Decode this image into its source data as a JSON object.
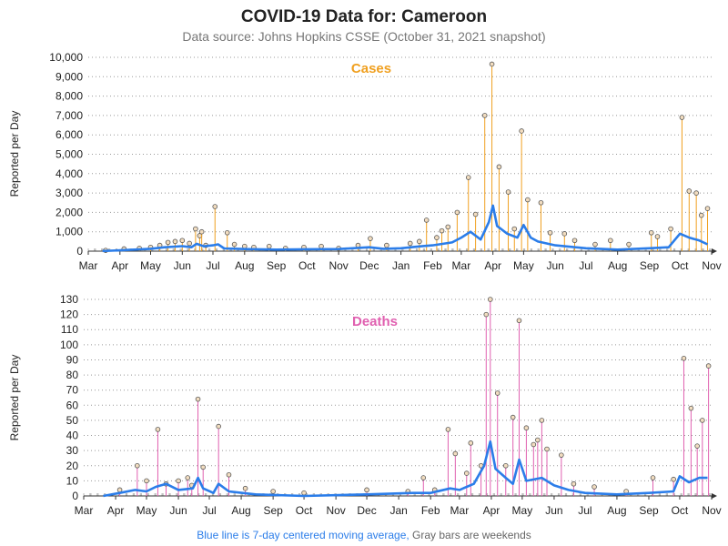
{
  "title": "COVID-19 Data for: Cameroon",
  "subtitle": "Data source: Johns Hopkins CSSE (October 31, 2021 snapshot)",
  "footnote": {
    "part1": "Blue line is 7-day centered moving average,",
    "part2": " Gray bars are weekends"
  },
  "colors": {
    "cases": "#f0a020",
    "deaths": "#e060b0",
    "moving_average": "#2b7de9",
    "weekend": "#bbbbbb",
    "marker_fill": "#f2ddc0"
  },
  "chart_data": [
    {
      "type": "line",
      "panel": "cases",
      "series_label": "Cases",
      "ylabel": "Reported per Day",
      "ylim": [
        0,
        10000
      ],
      "yticks": [
        0,
        1000,
        2000,
        3000,
        4000,
        5000,
        6000,
        7000,
        8000,
        9000,
        10000
      ],
      "ytick_labels": [
        "0",
        "1,000",
        "2,000",
        "3,000",
        "4,000",
        "5,000",
        "6,000",
        "7,000",
        "8,000",
        "9,000",
        "10,000"
      ],
      "x_tick_labels": [
        "Mar",
        "Apr",
        "May",
        "Jun",
        "Jul",
        "Aug",
        "Sep",
        "Oct",
        "Nov",
        "Dec",
        "Jan",
        "Feb",
        "Mar",
        "Apr",
        "May",
        "Jun",
        "Jul",
        "Aug",
        "Sep",
        "Oct",
        "Nov"
      ],
      "x_range": [
        "2020-03-01",
        "2021-11-01"
      ],
      "grid": "horizontal-dotted",
      "points": [
        [
          "2020-03-18",
          40
        ],
        [
          "2020-04-05",
          120
        ],
        [
          "2020-04-20",
          150
        ],
        [
          "2020-05-01",
          200
        ],
        [
          "2020-05-10",
          300
        ],
        [
          "2020-05-18",
          450
        ],
        [
          "2020-05-25",
          500
        ],
        [
          "2020-06-01",
          550
        ],
        [
          "2020-06-08",
          400
        ],
        [
          "2020-06-14",
          1150
        ],
        [
          "2020-06-18",
          800
        ],
        [
          "2020-06-20",
          1000
        ],
        [
          "2020-06-24",
          300
        ],
        [
          "2020-07-03",
          2300
        ],
        [
          "2020-07-15",
          950
        ],
        [
          "2020-07-22",
          350
        ],
        [
          "2020-08-01",
          250
        ],
        [
          "2020-08-10",
          200
        ],
        [
          "2020-08-25",
          250
        ],
        [
          "2020-09-10",
          150
        ],
        [
          "2020-09-28",
          200
        ],
        [
          "2020-10-15",
          250
        ],
        [
          "2020-11-01",
          150
        ],
        [
          "2020-11-20",
          300
        ],
        [
          "2020-12-02",
          650
        ],
        [
          "2020-12-18",
          300
        ],
        [
          "2021-01-10",
          400
        ],
        [
          "2021-01-19",
          500
        ],
        [
          "2021-01-26",
          1600
        ],
        [
          "2021-02-05",
          700
        ],
        [
          "2021-02-10",
          1050
        ],
        [
          "2021-02-16",
          1250
        ],
        [
          "2021-02-25",
          2000
        ],
        [
          "2021-03-08",
          3800
        ],
        [
          "2021-03-15",
          1900
        ],
        [
          "2021-03-24",
          7000
        ],
        [
          "2021-03-31",
          9650
        ],
        [
          "2021-04-07",
          4350
        ],
        [
          "2021-04-16",
          3050
        ],
        [
          "2021-04-22",
          1150
        ],
        [
          "2021-04-29",
          6200
        ],
        [
          "2021-05-05",
          2650
        ],
        [
          "2021-05-18",
          2500
        ],
        [
          "2021-05-27",
          950
        ],
        [
          "2021-06-10",
          900
        ],
        [
          "2021-06-20",
          550
        ],
        [
          "2021-07-10",
          350
        ],
        [
          "2021-07-25",
          550
        ],
        [
          "2021-08-12",
          350
        ],
        [
          "2021-09-03",
          950
        ],
        [
          "2021-09-09",
          750
        ],
        [
          "2021-09-22",
          1150
        ],
        [
          "2021-10-03",
          6900
        ],
        [
          "2021-10-10",
          3100
        ],
        [
          "2021-10-17",
          3000
        ],
        [
          "2021-10-22",
          1850
        ],
        [
          "2021-10-28",
          2200
        ]
      ],
      "moving_average": [
        [
          "2020-03-15",
          10
        ],
        [
          "2020-04-01",
          40
        ],
        [
          "2020-04-15",
          80
        ],
        [
          "2020-05-01",
          120
        ],
        [
          "2020-05-15",
          200
        ],
        [
          "2020-06-01",
          260
        ],
        [
          "2020-06-10",
          200
        ],
        [
          "2020-06-15",
          380
        ],
        [
          "2020-06-22",
          250
        ],
        [
          "2020-07-01",
          300
        ],
        [
          "2020-07-06",
          350
        ],
        [
          "2020-07-12",
          140
        ],
        [
          "2020-08-01",
          110
        ],
        [
          "2020-09-01",
          80
        ],
        [
          "2020-10-01",
          100
        ],
        [
          "2020-11-01",
          110
        ],
        [
          "2020-12-01",
          200
        ],
        [
          "2020-12-15",
          120
        ],
        [
          "2021-01-01",
          150
        ],
        [
          "2021-01-20",
          250
        ],
        [
          "2021-02-01",
          300
        ],
        [
          "2021-02-20",
          450
        ],
        [
          "2021-03-01",
          700
        ],
        [
          "2021-03-10",
          1000
        ],
        [
          "2021-03-20",
          600
        ],
        [
          "2021-03-28",
          1500
        ],
        [
          "2021-04-01",
          2350
        ],
        [
          "2021-04-05",
          1300
        ],
        [
          "2021-04-15",
          900
        ],
        [
          "2021-04-25",
          700
        ],
        [
          "2021-05-01",
          1350
        ],
        [
          "2021-05-08",
          700
        ],
        [
          "2021-05-15",
          500
        ],
        [
          "2021-06-01",
          300
        ],
        [
          "2021-07-01",
          150
        ],
        [
          "2021-08-01",
          80
        ],
        [
          "2021-09-01",
          150
        ],
        [
          "2021-09-20",
          200
        ],
        [
          "2021-10-01",
          900
        ],
        [
          "2021-10-10",
          700
        ],
        [
          "2021-10-20",
          550
        ],
        [
          "2021-10-28",
          350
        ]
      ]
    },
    {
      "type": "line",
      "panel": "deaths",
      "series_label": "Deaths",
      "ylabel": "Reported per Day",
      "ylim": [
        0,
        130
      ],
      "yticks": [
        0,
        10,
        20,
        30,
        40,
        50,
        60,
        70,
        80,
        90,
        100,
        110,
        120,
        130
      ],
      "ytick_labels": [
        "0",
        "10",
        "20",
        "30",
        "40",
        "50",
        "60",
        "70",
        "80",
        "90",
        "100",
        "110",
        "120",
        "130"
      ],
      "x_tick_labels": [
        "Mar",
        "Apr",
        "May",
        "Jun",
        "Jul",
        "Aug",
        "Sep",
        "Oct",
        "Nov",
        "Dec",
        "Jan",
        "Feb",
        "Mar",
        "Apr",
        "May",
        "Jun",
        "Jul",
        "Aug",
        "Sep",
        "Oct",
        "Nov"
      ],
      "x_range": [
        "2020-03-01",
        "2021-11-01"
      ],
      "grid": "horizontal-dotted",
      "points": [
        [
          "2020-04-05",
          4
        ],
        [
          "2020-04-22",
          20
        ],
        [
          "2020-05-01",
          10
        ],
        [
          "2020-05-12",
          44
        ],
        [
          "2020-05-20",
          8
        ],
        [
          "2020-06-01",
          10
        ],
        [
          "2020-06-10",
          12
        ],
        [
          "2020-06-14",
          7
        ],
        [
          "2020-06-20",
          64
        ],
        [
          "2020-06-25",
          19
        ],
        [
          "2020-07-10",
          46
        ],
        [
          "2020-07-20",
          14
        ],
        [
          "2020-08-05",
          5
        ],
        [
          "2020-09-01",
          3
        ],
        [
          "2020-10-01",
          2
        ],
        [
          "2020-12-01",
          4
        ],
        [
          "2021-01-10",
          3
        ],
        [
          "2021-01-25",
          12
        ],
        [
          "2021-02-05",
          4
        ],
        [
          "2021-02-18",
          44
        ],
        [
          "2021-02-25",
          28
        ],
        [
          "2021-03-08",
          15
        ],
        [
          "2021-03-12",
          35
        ],
        [
          "2021-03-22",
          20
        ],
        [
          "2021-03-27",
          120
        ],
        [
          "2021-03-31",
          130
        ],
        [
          "2021-04-07",
          68
        ],
        [
          "2021-04-15",
          20
        ],
        [
          "2021-04-22",
          52
        ],
        [
          "2021-04-28",
          116
        ],
        [
          "2021-05-05",
          45
        ],
        [
          "2021-05-12",
          34
        ],
        [
          "2021-05-16",
          37
        ],
        [
          "2021-05-20",
          50
        ],
        [
          "2021-05-25",
          31
        ],
        [
          "2021-06-08",
          27
        ],
        [
          "2021-06-20",
          8
        ],
        [
          "2021-07-10",
          6
        ],
        [
          "2021-08-10",
          3
        ],
        [
          "2021-09-05",
          12
        ],
        [
          "2021-09-25",
          11
        ],
        [
          "2021-10-05",
          91
        ],
        [
          "2021-10-12",
          58
        ],
        [
          "2021-10-18",
          33
        ],
        [
          "2021-10-23",
          50
        ],
        [
          "2021-10-29",
          86
        ]
      ],
      "moving_average": [
        [
          "2020-03-20",
          0
        ],
        [
          "2020-04-05",
          2
        ],
        [
          "2020-04-20",
          4
        ],
        [
          "2020-05-01",
          3
        ],
        [
          "2020-05-10",
          6
        ],
        [
          "2020-05-20",
          8
        ],
        [
          "2020-06-01",
          4
        ],
        [
          "2020-06-15",
          5
        ],
        [
          "2020-06-20",
          12
        ],
        [
          "2020-06-25",
          5
        ],
        [
          "2020-07-05",
          2
        ],
        [
          "2020-07-10",
          8
        ],
        [
          "2020-07-20",
          3
        ],
        [
          "2020-08-15",
          1
        ],
        [
          "2020-10-01",
          0
        ],
        [
          "2020-12-01",
          1
        ],
        [
          "2021-01-15",
          2
        ],
        [
          "2021-02-01",
          2
        ],
        [
          "2021-02-20",
          5
        ],
        [
          "2021-03-01",
          4
        ],
        [
          "2021-03-15",
          8
        ],
        [
          "2021-03-25",
          20
        ],
        [
          "2021-03-31",
          36
        ],
        [
          "2021-04-05",
          18
        ],
        [
          "2021-04-15",
          12
        ],
        [
          "2021-04-22",
          8
        ],
        [
          "2021-04-28",
          24
        ],
        [
          "2021-05-05",
          10
        ],
        [
          "2021-05-20",
          12
        ],
        [
          "2021-06-01",
          7
        ],
        [
          "2021-06-15",
          4
        ],
        [
          "2021-07-01",
          2
        ],
        [
          "2021-08-01",
          1
        ],
        [
          "2021-09-01",
          2
        ],
        [
          "2021-09-25",
          3
        ],
        [
          "2021-10-01",
          13
        ],
        [
          "2021-10-10",
          9
        ],
        [
          "2021-10-20",
          12
        ],
        [
          "2021-10-28",
          12
        ]
      ]
    }
  ]
}
